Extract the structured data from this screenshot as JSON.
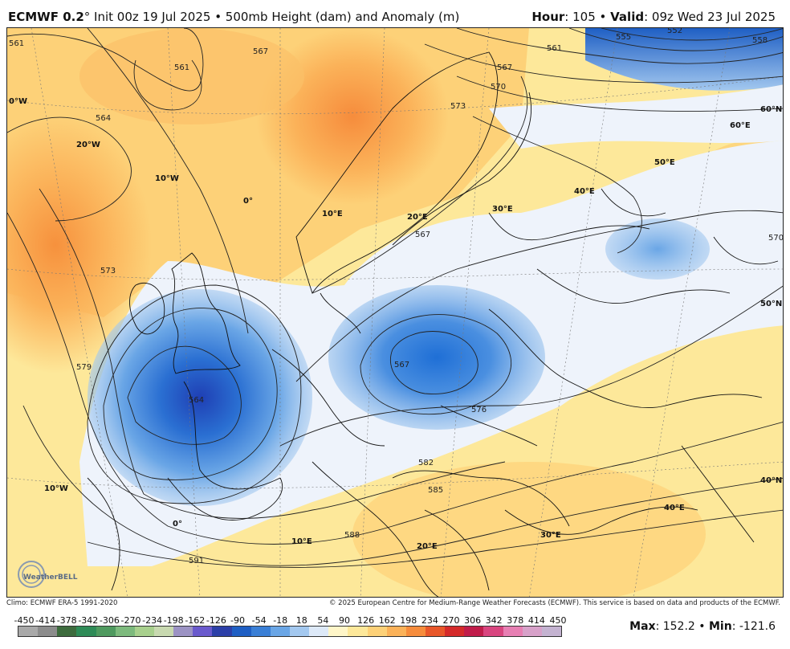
{
  "header": {
    "model": "ECMWF 0.2",
    "degree_symbol": "°",
    "init_text": " Init 00z 19 Jul 2025 • 500mb Height (dam) and Anomaly (m)",
    "hour_label": "Hour",
    "hour_value": ": 105 • ",
    "valid_label": "Valid",
    "valid_value": ": 09z Wed 23 Jul 2025"
  },
  "map": {
    "contour_labels": [
      "561",
      "561",
      "567",
      "564",
      "561",
      "555",
      "552",
      "558",
      "567",
      "570",
      "573",
      "573",
      "579",
      "564",
      "567",
      "567",
      "576",
      "582",
      "585",
      "588",
      "591",
      "570"
    ],
    "lat_lon_labels": [
      "0°W",
      "20°W",
      "10°W",
      "0°",
      "10°E",
      "20°E",
      "30°E",
      "40°E",
      "50°E",
      "60°E",
      "60°N",
      "50°N",
      "40°N",
      "10°W",
      "0°",
      "10°E",
      "20°E",
      "30°E",
      "40°E"
    ],
    "logo_text": "WeatherBELL"
  },
  "footer": {
    "climo": "Climo: ECMWF ERA-5 1991-2020",
    "copyright": "© 2025 European Centre for Medium-Range Weather Forecasts (ECMWF). This service is based on data and products of the ECMWF."
  },
  "colorbar": {
    "labels": [
      "-450",
      "-414",
      "-378",
      "-342",
      "-306",
      "-270",
      "-234",
      "-198",
      "-162",
      "-126",
      "-90",
      "-54",
      "-18",
      "18",
      "54",
      "90",
      "126",
      "162",
      "198",
      "234",
      "270",
      "306",
      "342",
      "378",
      "414",
      "450"
    ],
    "colors": [
      "#a9a9a9",
      "#8c8c8c",
      "#3d6b3d",
      "#2e8b57",
      "#4f9a5f",
      "#7dba7d",
      "#a8d08d",
      "#c8d9b0",
      "#9c93c4",
      "#6a5acd",
      "#2c3fa8",
      "#1f5fc4",
      "#3a7fd6",
      "#6aa6e6",
      "#a3c8ef",
      "#dde9f8",
      "#fff6c8",
      "#fde89a",
      "#fdd178",
      "#fbb259",
      "#f68c3c",
      "#e8572a",
      "#d42a2a",
      "#c01c4a",
      "#d8457f",
      "#e77fb3",
      "#d7a1c9",
      "#c4b3d1"
    ]
  },
  "stats": {
    "max_label": "Max",
    "max_value": ": 152.2 • ",
    "min_label": "Min",
    "min_value": ": -121.6"
  }
}
